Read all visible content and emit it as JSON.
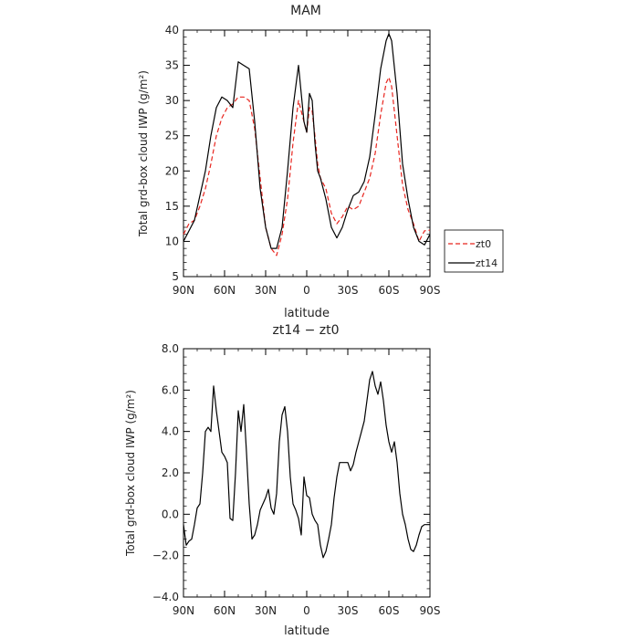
{
  "chart_data": [
    {
      "type": "line",
      "title": "MAM",
      "xlabel": "latitude",
      "ylabel": "Total grd-box cloud IWP (g/m²)",
      "xlim": [
        90,
        -90
      ],
      "ylim": [
        5,
        40
      ],
      "xticks": [
        90,
        60,
        30,
        0,
        -30,
        -60,
        -90
      ],
      "xticklabels": [
        "90N",
        "60N",
        "30N",
        "0",
        "30S",
        "60S",
        "90S"
      ],
      "yticks": [
        5,
        10,
        15,
        20,
        25,
        30,
        35,
        40
      ],
      "yticklabels": [
        "5",
        "10",
        "15",
        "20",
        "25",
        "30",
        "35",
        "40"
      ],
      "legend": {
        "placement": "right-outside",
        "entries": [
          "zt0",
          "zt14"
        ]
      },
      "x": [
        90,
        86,
        82,
        78,
        74,
        70,
        66,
        62,
        58,
        54,
        50,
        46,
        42,
        38,
        34,
        30,
        26,
        22,
        18,
        14,
        10,
        6,
        2,
        0,
        -2,
        -4,
        -6,
        -8,
        -10,
        -14,
        -18,
        -22,
        -26,
        -30,
        -34,
        -38,
        -42,
        -46,
        -50,
        -54,
        -58,
        -60,
        -62,
        -66,
        -70,
        -74,
        -78,
        -82,
        -86,
        -90
      ],
      "series": [
        {
          "name": "zt0",
          "color": "#e8251f",
          "dash": "dashed",
          "values": [
            11.0,
            12.5,
            13.0,
            15.0,
            17.5,
            21.0,
            25.0,
            27.5,
            29.0,
            29.5,
            30.5,
            30.5,
            30.0,
            26.0,
            19.0,
            12.0,
            9.0,
            8.0,
            11.0,
            16.0,
            24.0,
            30.0,
            27.0,
            25.5,
            29.0,
            28.5,
            25.0,
            21.0,
            19.0,
            17.5,
            14.0,
            12.5,
            13.5,
            15.0,
            14.5,
            15.0,
            17.0,
            19.0,
            22.5,
            28.0,
            32.5,
            33.3,
            32.0,
            25.0,
            18.0,
            14.5,
            12.5,
            10.0,
            11.5,
            11.6
          ]
        },
        {
          "name": "zt14",
          "color": "#000000",
          "dash": "solid",
          "values": [
            10.0,
            11.5,
            13.0,
            16.5,
            20.0,
            25.0,
            29.0,
            30.5,
            30.0,
            29.0,
            35.5,
            35.0,
            34.5,
            27.0,
            17.5,
            12.0,
            9.0,
            9.0,
            12.0,
            20.0,
            29.0,
            35.0,
            27.0,
            25.5,
            31.0,
            30.0,
            24.0,
            20.0,
            19.0,
            16.0,
            12.0,
            10.5,
            12.0,
            14.5,
            16.5,
            17.0,
            18.5,
            22.0,
            28.0,
            34.5,
            38.5,
            39.5,
            38.5,
            31.0,
            21.0,
            16.0,
            12.0,
            10.0,
            9.5,
            11.0
          ]
        }
      ]
    },
    {
      "type": "line",
      "title": "zt14 − zt0",
      "xlabel": "latitude",
      "ylabel": "Total grd-box cloud IWP (g/m²)",
      "xlim": [
        90,
        -90
      ],
      "ylim": [
        -4,
        8
      ],
      "xticks": [
        90,
        60,
        30,
        0,
        -30,
        -60,
        -90
      ],
      "xticklabels": [
        "90N",
        "60N",
        "30N",
        "0",
        "30S",
        "60S",
        "90S"
      ],
      "yticks": [
        -4,
        -2,
        0,
        2,
        4,
        6,
        8
      ],
      "yticklabels": [
        "−4.0",
        "−2.0",
        "0.0",
        "2.0",
        "4.0",
        "6.0",
        "8.0"
      ],
      "x": [
        90,
        88,
        86,
        84,
        82,
        80,
        78,
        76,
        74,
        72,
        70,
        68,
        66,
        64,
        62,
        60,
        58,
        56,
        54,
        52,
        50,
        48,
        46,
        44,
        42,
        40,
        38,
        36,
        34,
        32,
        30,
        28,
        26,
        24,
        22,
        20,
        18,
        16,
        14,
        12,
        10,
        8,
        6,
        4,
        2,
        0,
        -2,
        -4,
        -6,
        -8,
        -10,
        -12,
        -14,
        -16,
        -18,
        -20,
        -22,
        -24,
        -26,
        -28,
        -30,
        -32,
        -34,
        -36,
        -38,
        -40,
        -42,
        -44,
        -46,
        -48,
        -50,
        -52,
        -54,
        -56,
        -58,
        -60,
        -62,
        -64,
        -66,
        -68,
        -70,
        -72,
        -74,
        -76,
        -78,
        -80,
        -82,
        -84,
        -86,
        -88,
        -90
      ],
      "series": [
        {
          "name": "",
          "color": "#000000",
          "dash": "solid",
          "values": [
            -0.5,
            -1.5,
            -1.3,
            -1.2,
            -0.5,
            0.3,
            0.5,
            2.0,
            4.0,
            4.2,
            4.0,
            6.2,
            5.0,
            4.0,
            3.0,
            2.8,
            2.5,
            -0.2,
            -0.3,
            2.0,
            5.0,
            4.0,
            5.3,
            3.0,
            0.5,
            -1.2,
            -1.0,
            -0.5,
            0.2,
            0.5,
            0.8,
            1.2,
            0.3,
            0.0,
            1.0,
            3.5,
            4.8,
            5.2,
            4.0,
            1.8,
            0.5,
            0.2,
            -0.2,
            -1.0,
            1.8,
            0.9,
            0.8,
            0.0,
            -0.3,
            -0.5,
            -1.5,
            -2.1,
            -1.8,
            -1.2,
            -0.5,
            0.8,
            1.8,
            2.5,
            2.5,
            2.5,
            2.5,
            2.1,
            2.4,
            3.0,
            3.5,
            4.0,
            4.5,
            5.5,
            6.5,
            6.9,
            6.2,
            5.8,
            6.4,
            5.5,
            4.3,
            3.5,
            3.0,
            3.5,
            2.5,
            1.0,
            0.0,
            -0.5,
            -1.2,
            -1.7,
            -1.8,
            -1.5,
            -1.0,
            -0.6,
            -0.5,
            -0.5,
            -0.5
          ]
        }
      ]
    }
  ]
}
